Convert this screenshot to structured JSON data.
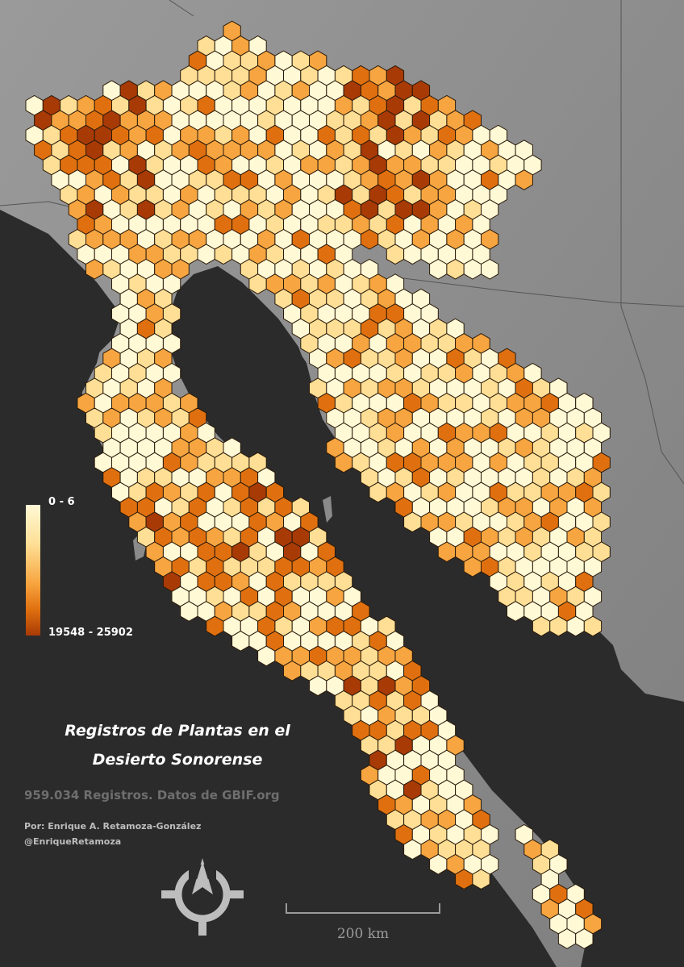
{
  "map": {
    "title_line1": "Registros de Plantas en el",
    "title_line2": "Desierto Sonorense",
    "subtitle": "959.034 Registros. Datos de GBIF.org",
    "credit_author": "Por: Enrique A. Retamoza-González",
    "credit_handle": "@EnriqueRetamoza"
  },
  "legend": {
    "min_label": "0 - 6",
    "max_label": "19548 - 25902",
    "colors": [
      "#fff9d6",
      "#fedf95",
      "#f7a540",
      "#e0700f",
      "#a83a06"
    ]
  },
  "scale_bar": {
    "label": "200 km"
  },
  "colors": {
    "ocean": "#2b2b2b",
    "land": "#8e8e8e",
    "hex_stroke": "#2a1a0a"
  }
}
